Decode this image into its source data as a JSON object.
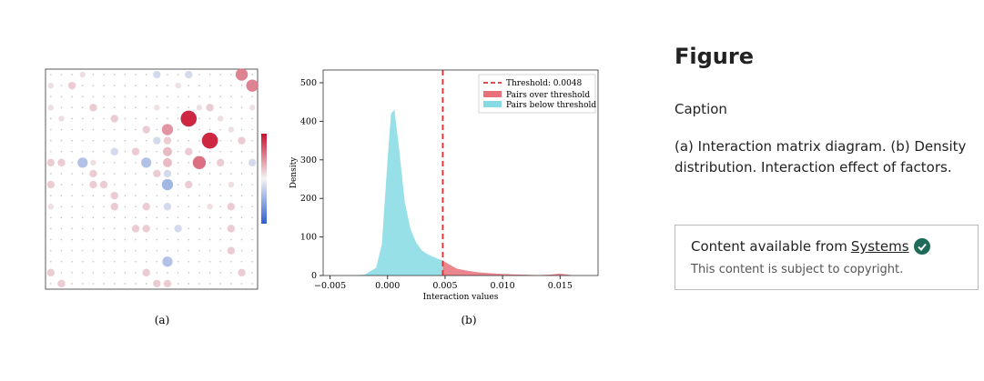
{
  "chart_data": [
    {
      "type": "matrix",
      "values": [
        [
          0,
          0,
          0,
          0.001,
          0,
          0,
          0,
          0,
          0,
          0,
          -0.002,
          0,
          0,
          -0.002,
          0,
          0,
          0,
          0,
          0.006,
          0
        ],
        [
          0.001,
          0,
          0.002,
          0,
          0,
          0,
          0,
          0,
          0,
          0,
          0,
          0,
          0.001,
          0,
          0,
          0,
          0,
          0,
          0,
          0.006
        ],
        [
          0,
          0,
          0,
          0,
          0,
          0,
          0,
          0,
          0,
          0,
          0,
          0,
          0,
          0,
          0,
          0,
          0,
          0,
          0,
          0
        ],
        [
          0.001,
          0,
          0,
          0,
          0.002,
          0,
          0,
          0,
          0,
          0,
          0.001,
          0,
          0,
          0,
          0.001,
          0.002,
          0,
          0,
          0,
          0.001
        ],
        [
          0,
          0.001,
          0,
          0,
          0,
          0,
          0.002,
          0,
          0,
          0,
          0,
          0,
          0,
          0.011,
          0,
          0,
          0.001,
          0,
          0,
          0
        ],
        [
          0,
          0,
          0,
          0,
          0,
          0,
          0,
          0,
          0,
          0.002,
          0,
          0.005,
          0,
          0,
          0,
          0,
          0,
          0.001,
          0,
          0
        ],
        [
          0,
          0,
          0,
          0,
          0,
          0,
          0,
          0,
          0,
          0,
          -0.002,
          0.002,
          0,
          0,
          0,
          0.011,
          0,
          0,
          0.002,
          0
        ],
        [
          0,
          0,
          0,
          0,
          0,
          0,
          -0.002,
          0,
          0.002,
          0,
          0,
          0.003,
          0,
          0.002,
          0,
          0,
          0,
          0,
          0,
          0
        ],
        [
          0.002,
          0.002,
          0,
          -0.004,
          0.001,
          0,
          0,
          0,
          0,
          -0.004,
          0,
          0.003,
          0,
          0,
          0.007,
          0,
          0.002,
          0,
          0,
          -0.002
        ],
        [
          0,
          0,
          0,
          0,
          0.002,
          0,
          0,
          0,
          0,
          0,
          0.002,
          -0.002,
          0,
          0,
          0,
          0,
          0,
          0,
          0,
          0
        ],
        [
          0.002,
          0,
          0,
          0,
          0.002,
          0.002,
          0,
          0,
          0,
          0,
          0,
          -0.005,
          0,
          0.002,
          0,
          0,
          0,
          0.001,
          0,
          0
        ],
        [
          0,
          0,
          0,
          0,
          0,
          0,
          0.002,
          0,
          0,
          0,
          0,
          0,
          0,
          0,
          0,
          0,
          0,
          0,
          0,
          0
        ],
        [
          0.001,
          0,
          0,
          0,
          0,
          0,
          0.002,
          0,
          0,
          0.002,
          0,
          -0.002,
          0,
          0,
          0,
          0.001,
          0,
          0.002,
          0,
          0
        ],
        [
          0,
          0,
          0,
          0,
          0,
          0,
          0,
          0,
          0,
          0,
          0,
          0,
          0,
          0,
          0,
          0,
          0,
          0,
          0,
          0
        ],
        [
          0,
          0,
          0,
          0,
          0,
          0,
          0,
          0,
          0.002,
          0.002,
          0,
          0,
          -0.002,
          0,
          0,
          0,
          0,
          0.002,
          0,
          0
        ],
        [
          0,
          0,
          0,
          0,
          0,
          0,
          0,
          0,
          0,
          0,
          0,
          0,
          0,
          0,
          0,
          0,
          0,
          0,
          0,
          0
        ],
        [
          0,
          0,
          0,
          0,
          0,
          0,
          0,
          0,
          0,
          0,
          0,
          0,
          0,
          0,
          0,
          0,
          0,
          0.002,
          0,
          0
        ],
        [
          0,
          0,
          0,
          0,
          0,
          0,
          0,
          0,
          0,
          0,
          0,
          -0.004,
          0,
          0,
          0,
          0,
          0,
          0,
          0,
          0
        ],
        [
          0.002,
          0,
          0,
          0,
          0,
          0,
          0,
          0,
          0,
          0.002,
          0,
          0,
          0,
          0,
          0,
          0,
          0,
          0,
          0.002,
          0
        ],
        [
          0,
          0.002,
          0,
          0,
          0,
          0,
          0,
          0,
          0,
          0,
          0.002,
          0.002,
          0,
          0,
          0,
          0,
          0,
          0,
          0,
          0
        ]
      ],
      "panel_label": "(a)"
    },
    {
      "type": "area",
      "xlabel": "Interaction values",
      "ylabel": "Density",
      "x": [
        -0.003,
        -0.002,
        -0.001,
        -0.0005,
        0,
        0.0003,
        0.0006,
        0.001,
        0.0015,
        0.002,
        0.0025,
        0.003,
        0.0035,
        0.004,
        0.0045,
        0.0048,
        0.005,
        0.006,
        0.007,
        0.008,
        0.009,
        0.01,
        0.011,
        0.012,
        0.013,
        0.014,
        0.015,
        0.016
      ],
      "series": [
        {
          "name": "Pairs over threshold",
          "color": "#e8707a",
          "values": [
            null,
            null,
            null,
            null,
            null,
            null,
            null,
            null,
            null,
            null,
            null,
            null,
            null,
            null,
            null,
            40,
            35,
            18,
            12,
            8,
            6,
            4,
            3,
            2,
            1,
            2,
            5,
            1
          ]
        },
        {
          "name": "Pairs below threshold",
          "color": "#86dbe3",
          "values": [
            0,
            2,
            20,
            80,
            300,
            420,
            430,
            330,
            190,
            120,
            85,
            65,
            55,
            48,
            42,
            40,
            null,
            null,
            null,
            null,
            null,
            null,
            null,
            null,
            null,
            null,
            null,
            null
          ]
        }
      ],
      "threshold": {
        "name": "Threshold: 0.0048",
        "value": 0.0048,
        "color": "#e03030"
      },
      "xlim": [
        -0.0056,
        0.0183
      ],
      "ylim": [
        0,
        533
      ],
      "xticks": [
        {
          "value": -0.005,
          "label": "−0.005"
        },
        {
          "value": 0,
          "label": "0.000"
        },
        {
          "value": 0.005,
          "label": "0.005"
        },
        {
          "value": 0.01,
          "label": "0.010"
        },
        {
          "value": 0.015,
          "label": "0.015"
        }
      ],
      "yticks": [
        0,
        100,
        200,
        300,
        400,
        500
      ],
      "panel_label": "(b)"
    }
  ],
  "sidebar": {
    "heading": "Figure",
    "caption_label": "Caption",
    "caption": "(a) Interaction matrix diagram. (b) Density distribution. Interaction effect of factors.",
    "access": {
      "text": "Content available from",
      "link": "Systems",
      "note": "This content is subject to copyright."
    }
  }
}
